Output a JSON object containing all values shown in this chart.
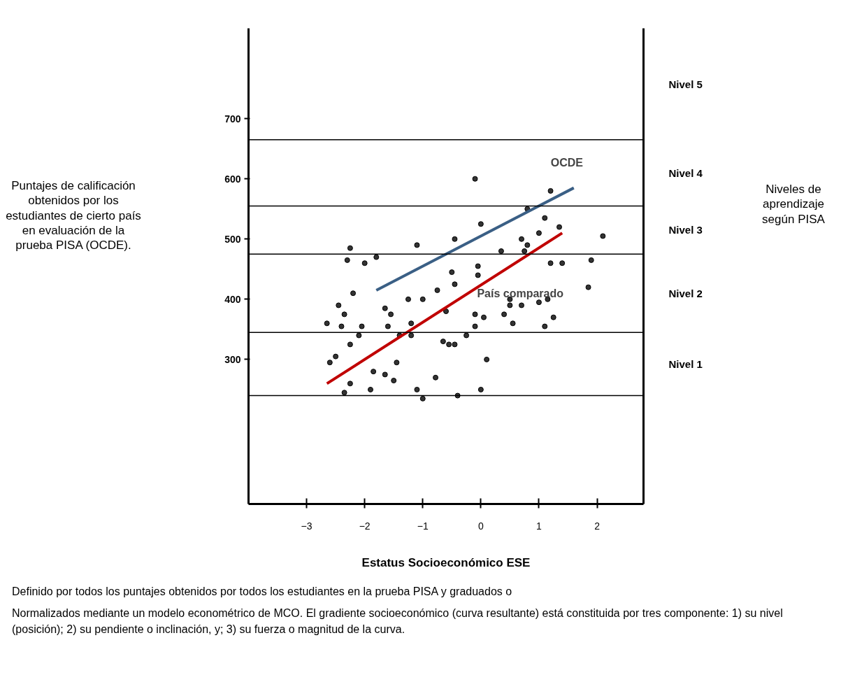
{
  "chart_data": {
    "type": "scatter",
    "xlabel": "Estatus Socioeconómico ESE",
    "xlim": [
      -4,
      2.8
    ],
    "xticks": [
      -3,
      -2,
      -1,
      0,
      1,
      2
    ],
    "ylim": [
      60,
      850
    ],
    "yticks": [
      300,
      400,
      500,
      600,
      700
    ],
    "grid": false,
    "ref_lines": [
      {
        "axis": "y",
        "value": 240,
        "color": "#000000"
      },
      {
        "axis": "y",
        "value": 345,
        "color": "#000000"
      },
      {
        "axis": "y",
        "value": 475,
        "color": "#000000"
      },
      {
        "axis": "y",
        "value": 555,
        "color": "#000000"
      },
      {
        "axis": "y",
        "value": 665,
        "color": "#000000"
      }
    ],
    "series": [
      {
        "color": "#000000",
        "marker": "circle",
        "x": [
          -2.25,
          -2.3,
          -2.0,
          -1.8,
          -1.1,
          -0.45,
          -0.5,
          -0.45,
          -0.75,
          -2.2,
          -1.0,
          -1.25,
          -2.45,
          -2.35,
          -1.65,
          -1.55,
          -1.2,
          -2.65,
          -2.4,
          -2.05,
          -1.6,
          -2.1,
          -1.4,
          -1.2,
          -0.6,
          -2.25,
          -0.65,
          -0.55,
          -0.45,
          -2.5,
          -2.6,
          -1.45,
          -1.85,
          -1.65,
          -1.5,
          -0.78,
          -2.25,
          -2.35,
          -1.9,
          -1.1,
          -1.0,
          -0.4,
          -0.1,
          1.2,
          0.8,
          1.1,
          0.0,
          1.35,
          1.0,
          2.1,
          0.7,
          0.8,
          0.75,
          0.35,
          1.2,
          1.4,
          1.9,
          -0.05,
          -0.05,
          1.85,
          0.5,
          0.5,
          0.7,
          1.0,
          1.15,
          -0.1,
          0.05,
          0.4,
          1.25,
          -0.1,
          0.55,
          1.1,
          -0.25,
          0.0,
          0.1
        ],
        "values": [
          485,
          465,
          460,
          470,
          490,
          500,
          445,
          425,
          415,
          410,
          400,
          400,
          390,
          375,
          385,
          375,
          360,
          360,
          355,
          355,
          355,
          340,
          340,
          340,
          380,
          325,
          330,
          325,
          325,
          305,
          295,
          295,
          280,
          275,
          265,
          270,
          260,
          245,
          250,
          250,
          235,
          240,
          600,
          580,
          550,
          535,
          525,
          520,
          510,
          505,
          500,
          490,
          480,
          480,
          460,
          460,
          465,
          455,
          440,
          420,
          400,
          390,
          390,
          395,
          400,
          375,
          370,
          375,
          370,
          355,
          360,
          355,
          340,
          250,
          300
        ]
      },
      {
        "type": "line",
        "name": "OCDE",
        "color": "#3a5f85",
        "x": [
          -1.8,
          1.6
        ],
        "values": [
          415,
          585
        ]
      },
      {
        "type": "line",
        "name": "País comparado",
        "color": "#c00000",
        "x": [
          -2.65,
          1.4
        ],
        "values": [
          260,
          510
        ]
      }
    ],
    "annotations": [
      "Puntajes de calificación obtenidos por los estudiantes de cierto país en evaluación de la prueba PISA (OCDE).",
      "Niveles de aprendizaje según PISA",
      "Nivel 1",
      "Nivel 2",
      "Nivel 3",
      "Nivel 4",
      "Nivel 5",
      "Definido por todos los puntajes obtenidos por todos los estudiantes en la prueba PISA y graduados o",
      "Normalizados mediante un modelo econométrico de MCO. El gradiente socioeconómico (curva resultante) está constituida por tres componente: 1) su nivel (posición); 2) su pendiente o inclinación, y; 3) su fuerza o magnitud de la curva."
    ]
  }
}
